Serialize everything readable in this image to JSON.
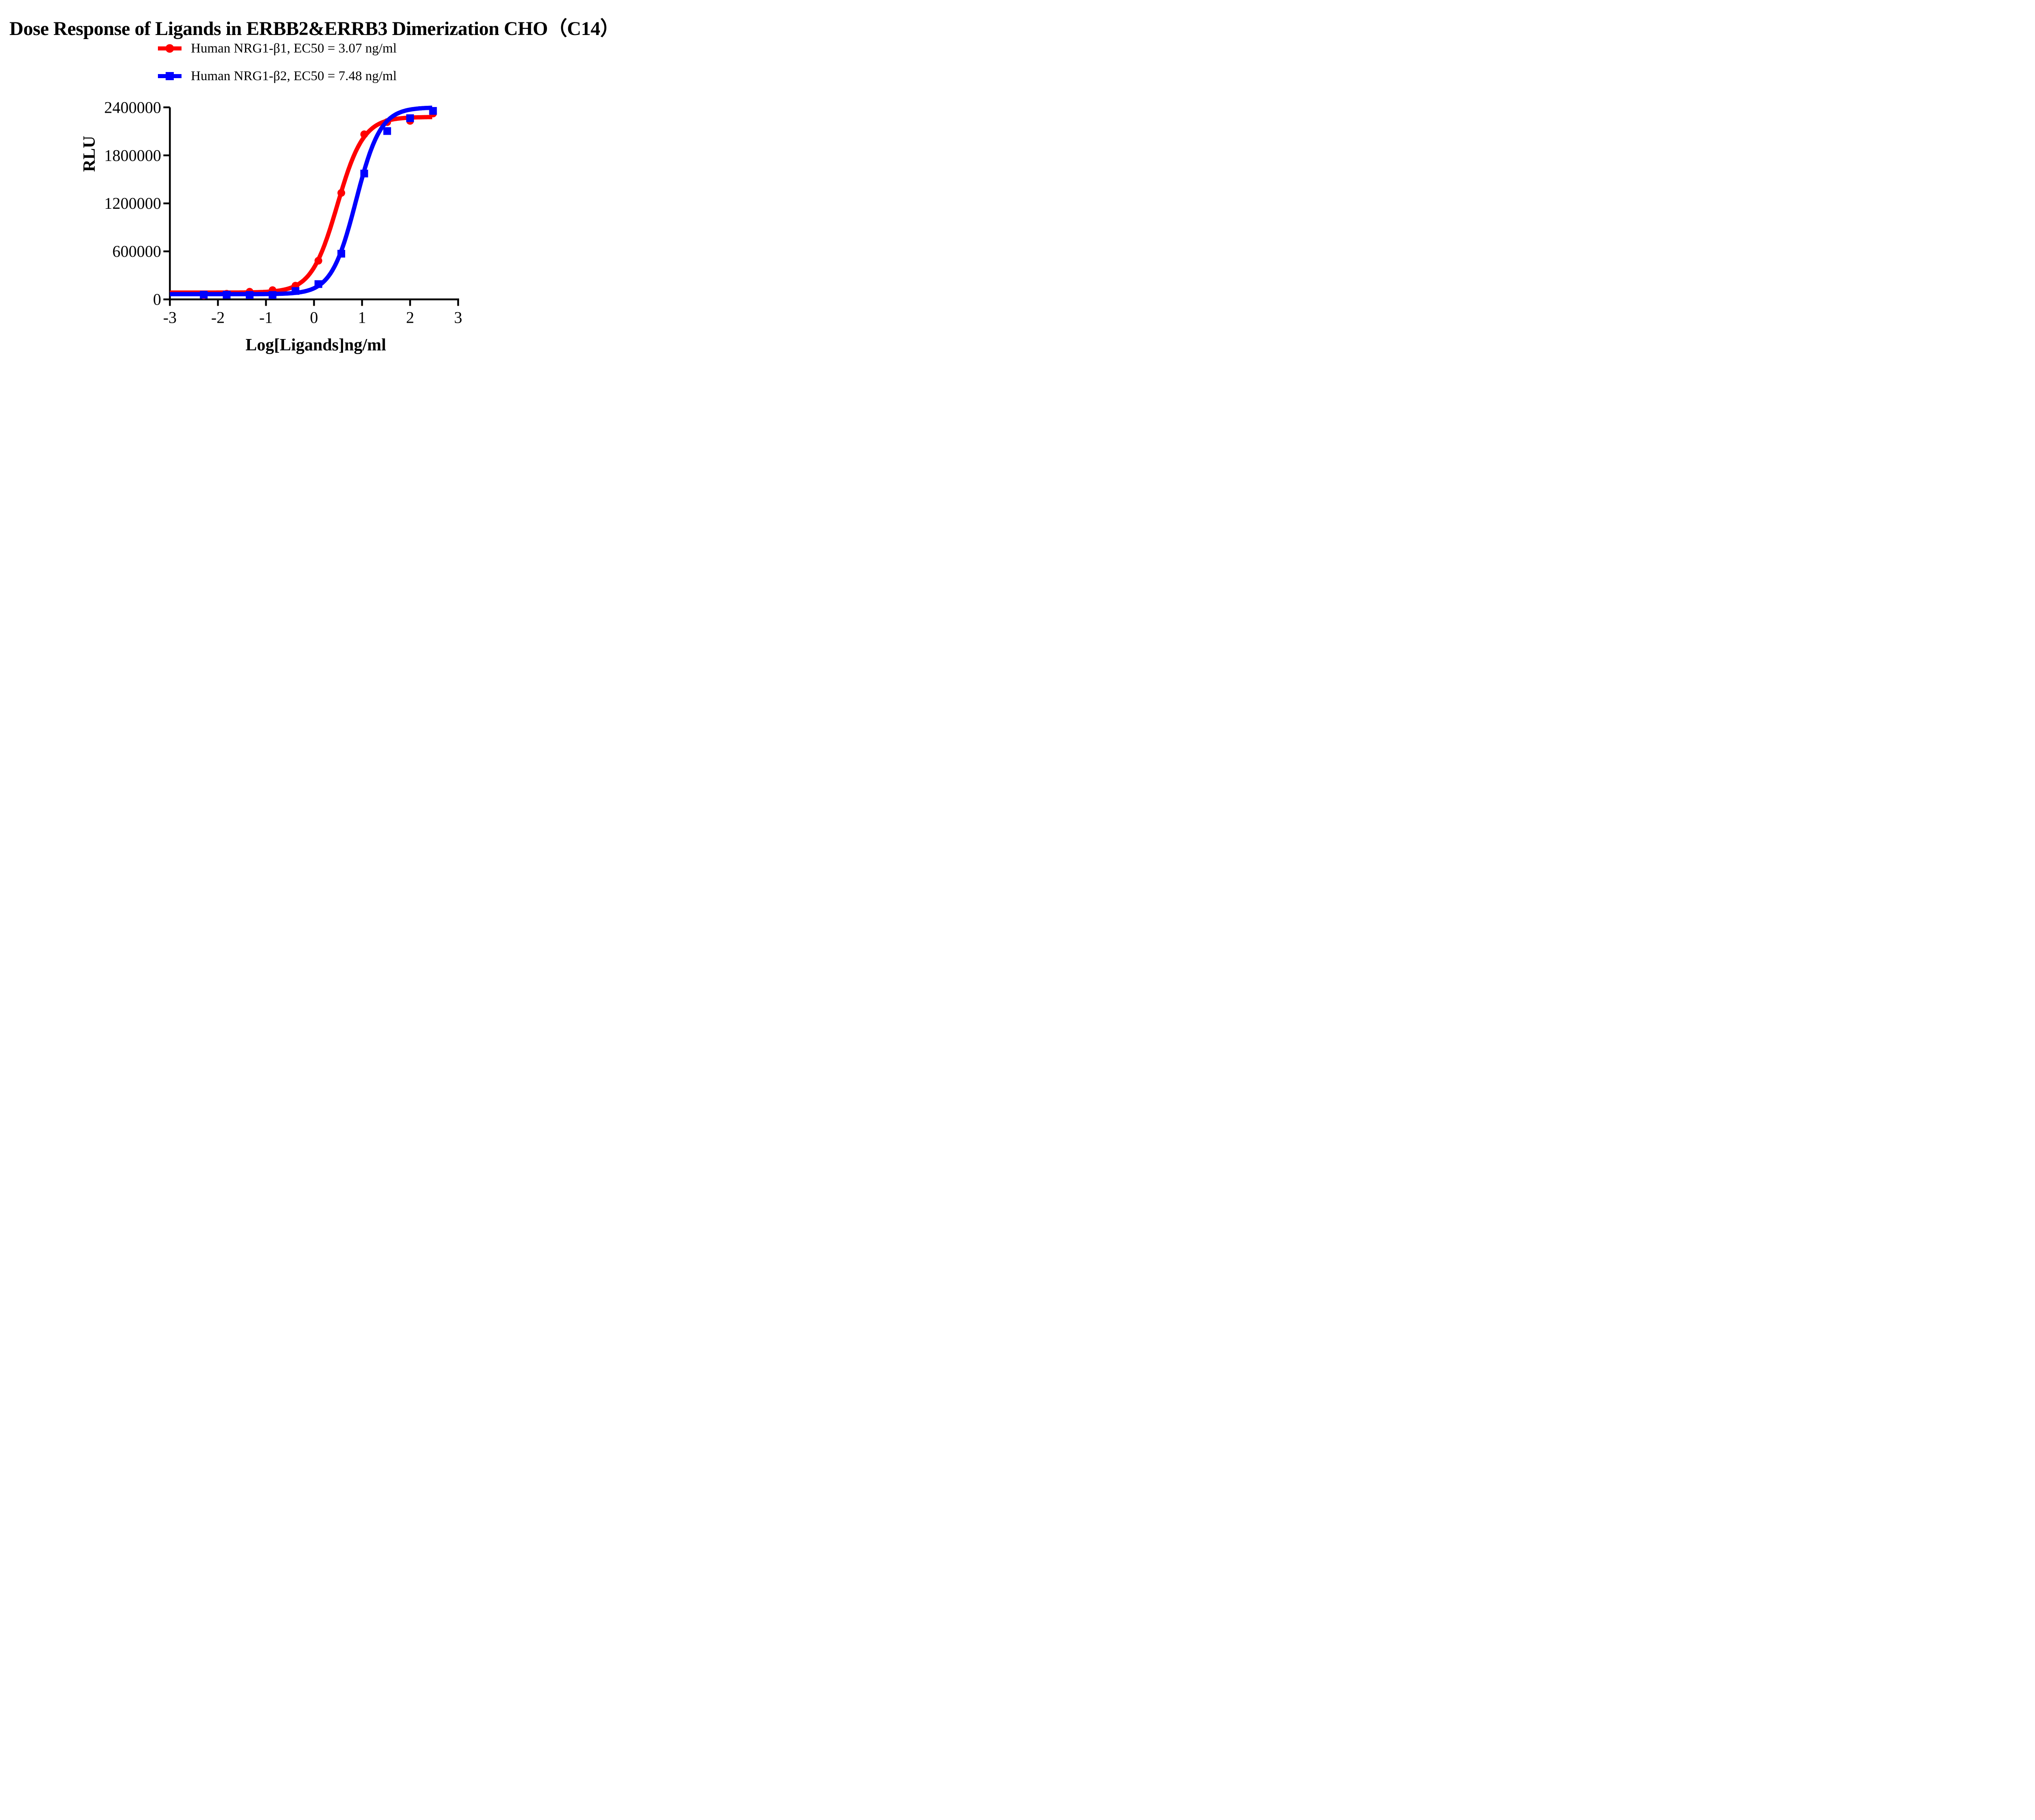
{
  "title": "Dose Response of Ligands in ERBB2&ERRB3 Dimerization CHO（C14）",
  "colors": {
    "series1": "#ff0000",
    "series2": "#0000ff",
    "axis": "#000000",
    "background": "#ffffff"
  },
  "legend": [
    {
      "label": "Human NRG1-β1, EC50 = 3.07 ng/ml",
      "marker": "circle",
      "color": "#ff0000"
    },
    {
      "label": "Human NRG1-β2, EC50 = 7.48 ng/ml",
      "marker": "square",
      "color": "#0000ff"
    }
  ],
  "chart_data": {
    "type": "scatter",
    "subtype": "dose-response sigmoid curves with markers",
    "title": "Dose Response of Ligands in ERBB2&ERRB3 Dimerization CHO（C14）",
    "xlabel": "Log[Ligands]ng/ml",
    "ylabel": "RLU",
    "xlim": [
      -3,
      3.05
    ],
    "ylim": [
      0,
      2400000
    ],
    "x_ticks": [
      -3,
      -2,
      -1,
      0,
      1,
      2,
      3
    ],
    "y_ticks": [
      0,
      600000,
      1200000,
      1800000,
      2400000
    ],
    "grid": false,
    "legend_position": "top-center",
    "x": [
      -2.295,
      -1.818,
      -1.34,
      -0.863,
      -0.386,
      0.091,
      0.568,
      1.045,
      1.523,
      2.0,
      2.477
    ],
    "series": [
      {
        "name": "Human NRG1-β1",
        "ec50_label": "EC50 = 3.07 ng/ml",
        "ec50_ng_ml": 3.07,
        "marker": "circle",
        "color": "#ff0000",
        "values": [
          50000,
          70000,
          95000,
          115000,
          171000,
          483000,
          1331000,
          2063000,
          2216000,
          2231000,
          2323000
        ],
        "fit": {
          "bottom": 85000,
          "top": 2280000,
          "logEC50": 0.487,
          "hill": 1.6,
          "x_start": -3,
          "x_end": 2.477
        }
      },
      {
        "name": "Human NRG1-β2",
        "ec50_label": "EC50 = 7.48 ng/ml",
        "ec50_ng_ml": 7.48,
        "marker": "square",
        "color": "#0000ff",
        "values": [
          58000,
          58000,
          55000,
          55000,
          105000,
          191000,
          571000,
          1573000,
          2104000,
          2265000,
          2356000
        ],
        "fit": {
          "bottom": 65000,
          "top": 2400000,
          "logEC50": 0.874,
          "hill": 1.7,
          "x_start": -3,
          "x_end": 2.477
        }
      }
    ]
  }
}
